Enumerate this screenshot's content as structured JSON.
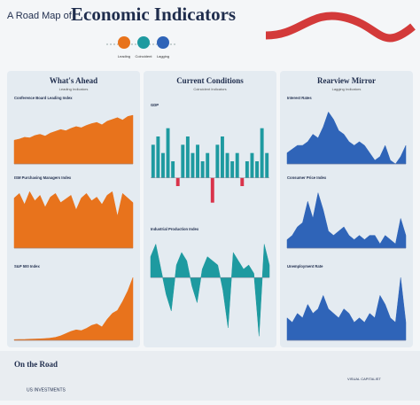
{
  "header": {
    "pre_title": "A Road Map of",
    "title": "Economic Indicators",
    "stops": [
      "Leading",
      "Coincident",
      "Lagging"
    ]
  },
  "panels": [
    {
      "title": "What's Ahead",
      "subtitle": "Leading Indicators",
      "charts": [
        {
          "type": "area",
          "title": "Conference Board Leading Index",
          "color": "#e8731c",
          "ylim": [
            0,
            100
          ],
          "values": [
            40,
            42,
            45,
            44,
            48,
            50,
            47,
            52,
            55,
            58,
            56,
            60,
            63,
            61,
            65,
            68,
            70,
            66,
            72,
            75,
            78,
            74,
            80,
            82
          ]
        },
        {
          "type": "area",
          "title": "ISM Purchasing Managers Index",
          "color": "#e8731c",
          "ylim": [
            0,
            70
          ],
          "values": [
            55,
            60,
            48,
            62,
            52,
            58,
            45,
            56,
            60,
            50,
            54,
            58,
            42,
            55,
            60,
            52,
            56,
            48,
            58,
            62,
            35,
            60,
            55,
            50
          ]
        },
        {
          "type": "area",
          "title": "S&P 500 Index",
          "color": "#e8731c",
          "ylim": [
            0,
            450
          ],
          "values": [
            5,
            6,
            6,
            8,
            9,
            10,
            12,
            15,
            20,
            30,
            45,
            60,
            70,
            65,
            80,
            100,
            110,
            90,
            140,
            180,
            200,
            260,
            330,
            420
          ]
        }
      ]
    },
    {
      "title": "Current Conditions",
      "subtitle": "Coincident Indicators",
      "charts": [
        {
          "type": "bar",
          "title": "GDP",
          "color": "#1e9aa0",
          "neg_color": "#d9334a",
          "ylim": [
            -4,
            8
          ],
          "values": [
            4,
            5,
            3,
            6,
            2,
            -1,
            4,
            5,
            3,
            4,
            2,
            3,
            -3,
            4,
            5,
            3,
            2,
            3,
            -1,
            2,
            3,
            2,
            6,
            3
          ]
        },
        {
          "type": "area",
          "title": "Industrial Production Index",
          "color": "#1e9aa0",
          "ylim": [
            -15,
            10
          ],
          "values": [
            5,
            8,
            2,
            -4,
            -8,
            3,
            6,
            4,
            -2,
            -6,
            2,
            5,
            4,
            3,
            -3,
            -12,
            6,
            4,
            2,
            3,
            1,
            -14,
            8,
            3
          ]
        }
      ]
    },
    {
      "title": "Rearview Mirror",
      "subtitle": "Lagging Indicators",
      "charts": [
        {
          "type": "area",
          "title": "Interest Rates",
          "color": "#2f64b8",
          "ylim": [
            0,
            16
          ],
          "values": [
            3,
            4,
            5,
            5,
            6,
            8,
            7,
            10,
            14,
            12,
            9,
            8,
            6,
            5,
            6,
            5,
            3,
            1,
            2,
            5,
            1,
            0,
            2,
            5
          ]
        },
        {
          "type": "area",
          "title": "Consumer Price Index",
          "color": "#2f64b8",
          "ylim": [
            0,
            15
          ],
          "values": [
            2,
            3,
            5,
            6,
            11,
            7,
            13,
            9,
            4,
            3,
            4,
            5,
            3,
            2,
            3,
            2,
            3,
            3,
            1,
            3,
            2,
            1,
            7,
            3
          ]
        },
        {
          "type": "area",
          "title": "Unemployment Rate",
          "color": "#2f64b8",
          "ylim": [
            0,
            15
          ],
          "values": [
            5,
            4,
            6,
            5,
            8,
            6,
            7,
            10,
            7,
            6,
            5,
            7,
            6,
            4,
            5,
            4,
            6,
            5,
            10,
            8,
            5,
            4,
            14,
            4
          ]
        }
      ]
    }
  ],
  "footer": {
    "title": "On the Road",
    "brand_left": "US INVESTMENTS",
    "brand_right": "VISUAL CAPITALIST"
  }
}
